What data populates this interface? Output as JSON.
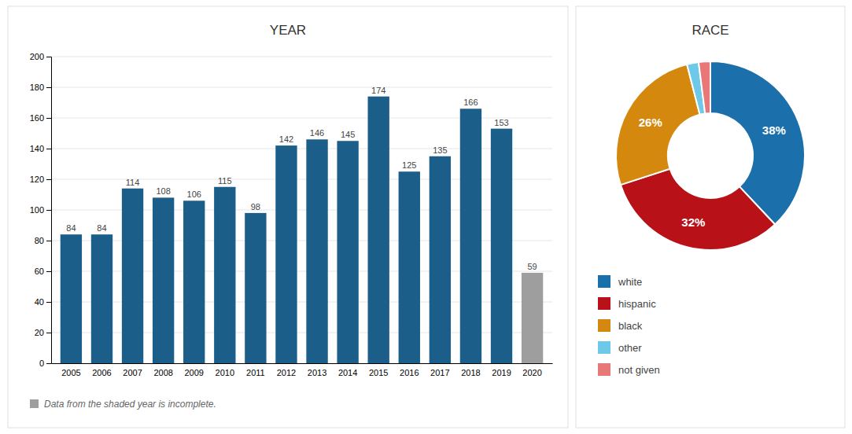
{
  "chart_data": [
    {
      "type": "bar",
      "title": "YEAR",
      "categories": [
        "2005",
        "2006",
        "2007",
        "2008",
        "2009",
        "2010",
        "2011",
        "2012",
        "2013",
        "2014",
        "2015",
        "2016",
        "2017",
        "2018",
        "2019",
        "2020"
      ],
      "values": [
        84,
        84,
        114,
        108,
        106,
        115,
        98,
        142,
        146,
        145,
        174,
        125,
        135,
        166,
        153,
        59
      ],
      "colors": [
        "#1b5e8a",
        "#1b5e8a",
        "#1b5e8a",
        "#1b5e8a",
        "#1b5e8a",
        "#1b5e8a",
        "#1b5e8a",
        "#1b5e8a",
        "#1b5e8a",
        "#1b5e8a",
        "#1b5e8a",
        "#1b5e8a",
        "#1b5e8a",
        "#1b5e8a",
        "#1b5e8a",
        "#9e9e9e"
      ],
      "ylim": [
        0,
        200
      ],
      "yticks": [
        0,
        20,
        40,
        60,
        80,
        100,
        120,
        140,
        160,
        180,
        200
      ],
      "grid": true,
      "data_labels": true,
      "annotations": [
        "Data from the shaded year is incomplete."
      ]
    },
    {
      "type": "pie",
      "title": "RACE",
      "categories": [
        "white",
        "hispanic",
        "black",
        "other",
        "not given"
      ],
      "values": [
        38,
        32,
        26,
        2,
        2
      ],
      "value_labels": [
        "38%",
        "32%",
        "26%",
        null,
        null
      ],
      "colors": [
        "#1b6faa",
        "#b81118",
        "#d4890e",
        "#6ec8e8",
        "#e87878"
      ],
      "legend": "bottom"
    }
  ]
}
